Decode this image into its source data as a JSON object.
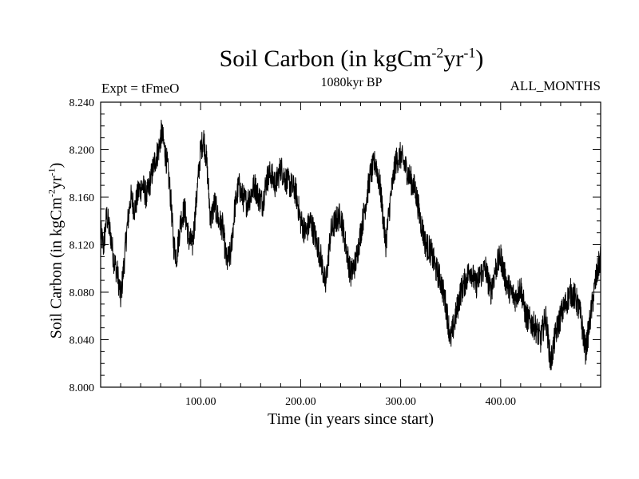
{
  "header": {
    "title_main": "Soil Carbon (in kgCm",
    "title_exp1": "-2",
    "title_mid": "yr",
    "title_exp2": "-1",
    "title_end": ")",
    "subtitle": "1080kyr BP",
    "experiment": "Expt = tFmeO",
    "months": "ALL_MONTHS"
  },
  "chart_data": {
    "type": "line",
    "title": "Soil Carbon (in kgCm-2yr-1)",
    "xlabel": "Time (in years since start)",
    "ylabel_main": "Soil Carbon (in kgCm",
    "ylabel_exp1": "-2",
    "ylabel_mid": "yr",
    "ylabel_exp2": "-1",
    "ylabel_end": ")",
    "xlim": [
      0,
      500
    ],
    "ylim": [
      8.0,
      8.24
    ],
    "xticks": [
      100,
      200,
      300,
      400
    ],
    "xtick_labels": [
      "100.00",
      "200.00",
      "300.00",
      "400.00"
    ],
    "yticks": [
      8.0,
      8.04,
      8.08,
      8.12,
      8.16,
      8.2,
      8.24
    ],
    "ytick_labels": [
      "8.000",
      "8.040",
      "8.080",
      "8.120",
      "8.160",
      "8.200",
      "8.240"
    ],
    "series": [
      {
        "name": "Soil Carbon",
        "color": "#000000",
        "x": [
          0,
          3,
          6,
          10,
          13,
          17,
          20,
          23,
          26,
          30,
          34,
          38,
          42,
          46,
          50,
          54,
          58,
          61,
          64,
          67,
          70,
          73,
          76,
          80,
          84,
          88,
          92,
          96,
          100,
          103,
          106,
          110,
          114,
          118,
          122,
          126,
          130,
          134,
          138,
          142,
          146,
          150,
          154,
          158,
          162,
          166,
          170,
          175,
          180,
          185,
          190,
          195,
          200,
          205,
          210,
          215,
          220,
          225,
          230,
          235,
          240,
          245,
          250,
          255,
          260,
          265,
          270,
          275,
          280,
          285,
          290,
          295,
          300,
          305,
          310,
          315,
          320,
          325,
          330,
          335,
          340,
          345,
          350,
          355,
          360,
          365,
          370,
          375,
          380,
          385,
          390,
          395,
          400,
          405,
          410,
          415,
          420,
          425,
          430,
          435,
          440,
          445,
          450,
          455,
          460,
          465,
          470,
          475,
          480,
          485,
          490,
          495,
          500
        ],
        "values": [
          8.13,
          8.118,
          8.145,
          8.128,
          8.108,
          8.095,
          8.075,
          8.1,
          8.13,
          8.16,
          8.15,
          8.165,
          8.17,
          8.16,
          8.175,
          8.19,
          8.2,
          8.215,
          8.2,
          8.185,
          8.16,
          8.12,
          8.11,
          8.14,
          8.15,
          8.125,
          8.12,
          8.16,
          8.2,
          8.21,
          8.19,
          8.14,
          8.155,
          8.14,
          8.135,
          8.105,
          8.112,
          8.15,
          8.17,
          8.16,
          8.155,
          8.162,
          8.17,
          8.16,
          8.155,
          8.175,
          8.18,
          8.17,
          8.185,
          8.175,
          8.17,
          8.165,
          8.14,
          8.13,
          8.14,
          8.125,
          8.11,
          8.085,
          8.13,
          8.14,
          8.145,
          8.12,
          8.095,
          8.105,
          8.13,
          8.155,
          8.18,
          8.19,
          8.165,
          8.12,
          8.16,
          8.19,
          8.195,
          8.185,
          8.175,
          8.165,
          8.14,
          8.12,
          8.115,
          8.1,
          8.09,
          8.07,
          8.04,
          8.06,
          8.08,
          8.09,
          8.1,
          8.085,
          8.095,
          8.1,
          8.08,
          8.1,
          8.11,
          8.09,
          8.08,
          8.075,
          8.085,
          8.06,
          8.055,
          8.05,
          8.04,
          8.06,
          8.02,
          8.045,
          8.06,
          8.07,
          8.08,
          8.075,
          8.06,
          8.03,
          8.06,
          8.09,
          8.11
        ]
      }
    ]
  }
}
